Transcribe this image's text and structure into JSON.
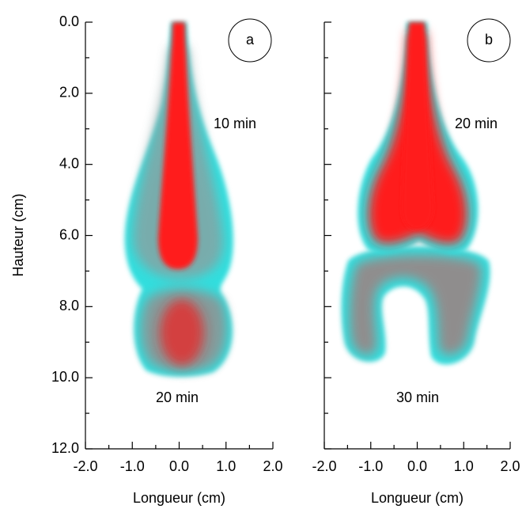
{
  "chart_data": [
    {
      "type": "image",
      "panel_label": "a",
      "annotations": [
        "10 min",
        "20 min"
      ],
      "xlabel": "Longueur (cm)",
      "ylabel": "Hauteur (cm)",
      "xlim": [
        -2,
        2
      ],
      "xticks": [
        {
          "value": -2,
          "label": "-2.0"
        },
        {
          "value": -1,
          "label": "-1.0"
        },
        {
          "value": 0,
          "label": "0.0"
        },
        {
          "value": 1,
          "label": "1.0"
        },
        {
          "value": 2,
          "label": "2.0"
        }
      ],
      "ylim": [
        0,
        12
      ],
      "y_inverted": true,
      "show_ytick_labels": true,
      "yticks": [
        {
          "value": 0,
          "label": "0.0"
        },
        {
          "value": 2,
          "label": "2.0"
        },
        {
          "value": 4,
          "label": "4.0"
        },
        {
          "value": 6,
          "label": "6.0"
        },
        {
          "value": 8,
          "label": "8.0"
        },
        {
          "value": 10,
          "label": "10.0"
        },
        {
          "value": 12,
          "label": "12.0"
        }
      ]
    },
    {
      "type": "image",
      "panel_label": "b",
      "annotations": [
        "20 min",
        "30 min"
      ],
      "xlabel": "Longueur (cm)",
      "xlim": [
        -2,
        2
      ],
      "xticks": [
        {
          "value": -2,
          "label": "-2.0"
        },
        {
          "value": -1,
          "label": "-1.0"
        },
        {
          "value": 0,
          "label": "0.0"
        },
        {
          "value": 1,
          "label": "1.0"
        },
        {
          "value": 2,
          "label": "2.0"
        }
      ],
      "ylim": [
        0,
        12
      ],
      "y_inverted": true,
      "show_ytick_labels": false,
      "yticks": [
        0,
        2,
        4,
        6,
        8,
        10,
        12
      ]
    }
  ]
}
